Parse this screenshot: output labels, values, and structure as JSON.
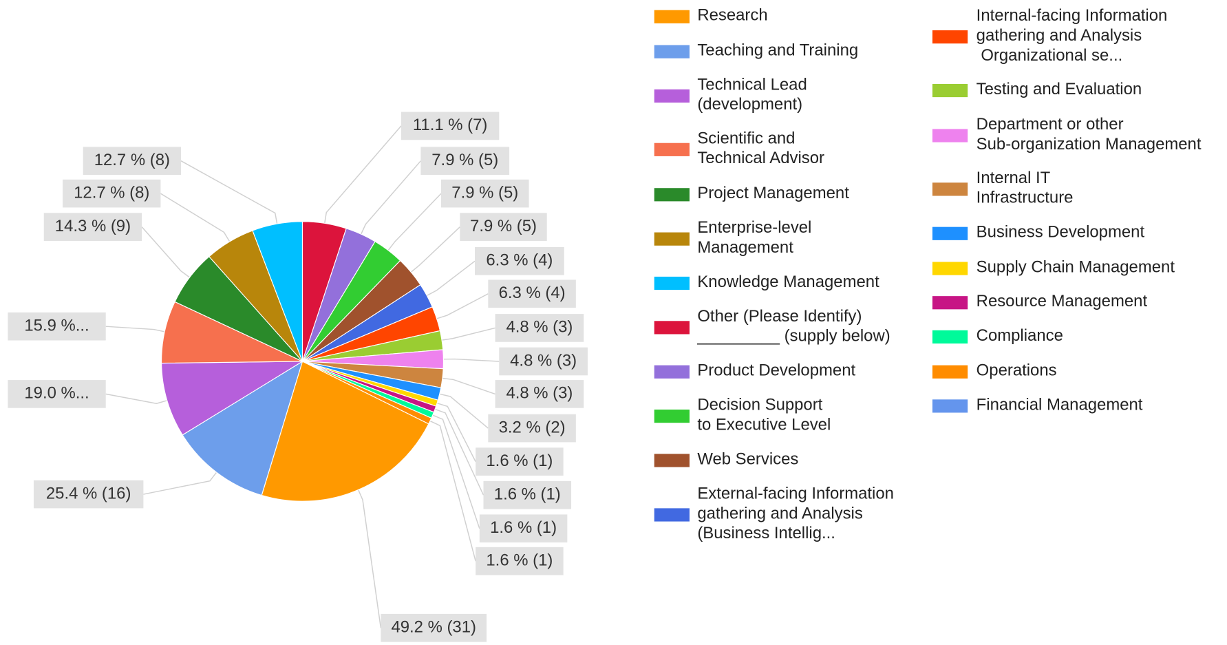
{
  "chart_data": {
    "type": "pie",
    "categories": [
      "Research",
      "Teaching and Training",
      "Technical Lead\n(development)",
      "Scientific and\nTechnical Advisor",
      "Project Management",
      "Enterprise-level\nManagement",
      "Knowledge Management",
      "Other (Please Identify)\n_________ (supply below)",
      "Product Development",
      "Decision Support\nto Executive Level",
      "Web Services",
      "External-facing Information\ngathering and Analysis\n(Business Intellig...",
      "Internal-facing Information\ngathering and Analysis\n Organizational se...",
      "Testing and Evaluation",
      "Department or other\nSub-organization Management",
      "Internal IT\nInfrastructure",
      "Business Development",
      "Supply Chain Management",
      "Resource Management",
      "Compliance",
      "Operations",
      "Financial Management"
    ],
    "values": [
      49.2,
      25.4,
      19.0,
      15.9,
      14.3,
      12.7,
      12.7,
      11.1,
      7.9,
      7.9,
      7.9,
      6.3,
      6.3,
      4.8,
      4.8,
      4.8,
      3.2,
      1.6,
      1.6,
      1.6,
      1.6,
      0
    ],
    "value_labels": [
      "49.2 % (31)",
      "25.4 % (16)",
      "19.0 %...",
      "15.9 %...",
      "14.3 % (9)",
      "12.7 % (8)",
      "12.7 % (8)",
      "11.1 % (7)",
      "7.9 % (5)",
      "7.9 % (5)",
      "7.9 % (5)",
      "6.3 % (4)",
      "6.3 % (4)",
      "4.8 % (3)",
      "4.8 % (3)",
      "4.8 % (3)",
      "3.2 % (2)",
      "1.6 % (1)",
      "1.6 % (1)",
      "1.6 % (1)",
      "1.6 % (1)",
      null
    ],
    "colors": [
      "#ff9900",
      "#6d9eeb",
      "#b65fdb",
      "#f6704e",
      "#2a8a2a",
      "#b8860b",
      "#00bfff",
      "#dc143c",
      "#9370db",
      "#32cd32",
      "#a0522d",
      "#4169e1",
      "#ff4500",
      "#9acd32",
      "#ee82ee",
      "#cd853f",
      "#1e90ff",
      "#ffd700",
      "#c71585",
      "#00fa9a",
      "#ff8c00",
      "#6495ed"
    ],
    "legend": "right"
  }
}
